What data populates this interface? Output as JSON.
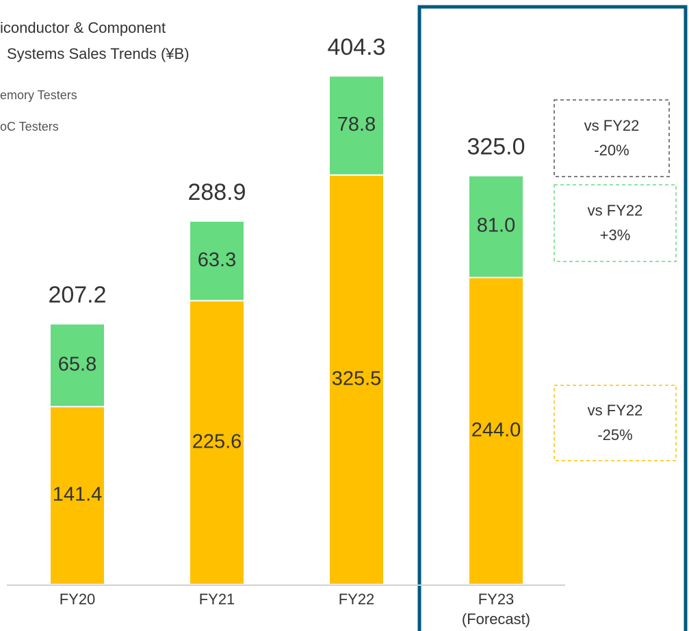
{
  "chart_data": {
    "type": "stacked_bar",
    "title_lines": [
      "iconductor & Component",
      "Systems Sales Trends  (¥B)"
    ],
    "categories": [
      "FY20",
      "FY21",
      "FY22",
      "FY23"
    ],
    "forecast_note": "(Forecast)",
    "series": [
      {
        "name": "oC Testers",
        "color": "#FFC000",
        "values": [
          141.4,
          225.6,
          325.5,
          244
        ],
        "value_labels": [
          "141.4",
          "225.6",
          "325.5",
          "244.0"
        ]
      },
      {
        "name": "emory Testers",
        "color": "#66DB80",
        "values": [
          65.8,
          63.3,
          78.8,
          81
        ],
        "value_labels": [
          "65.8",
          "63.3",
          "78.8",
          "81.0"
        ]
      }
    ],
    "totals": {
      "values": [
        207.2,
        288.9,
        404.3,
        325
      ],
      "value_labels": [
        "207.2",
        "288.9",
        "404.3",
        "325.0"
      ]
    },
    "ylim": [
      0,
      420
    ],
    "legend_order": [
      1,
      0
    ],
    "annotations": [
      {
        "lines": [
          "vs FY22",
          "-20%"
        ],
        "color": "#555555"
      },
      {
        "lines": [
          "vs FY22",
          "+3%"
        ],
        "color": "#66DB80"
      },
      {
        "lines": [
          "vs FY22",
          "-25%"
        ],
        "color": "#FFC000"
      }
    ],
    "forecast_box_color": "#005A7F"
  }
}
